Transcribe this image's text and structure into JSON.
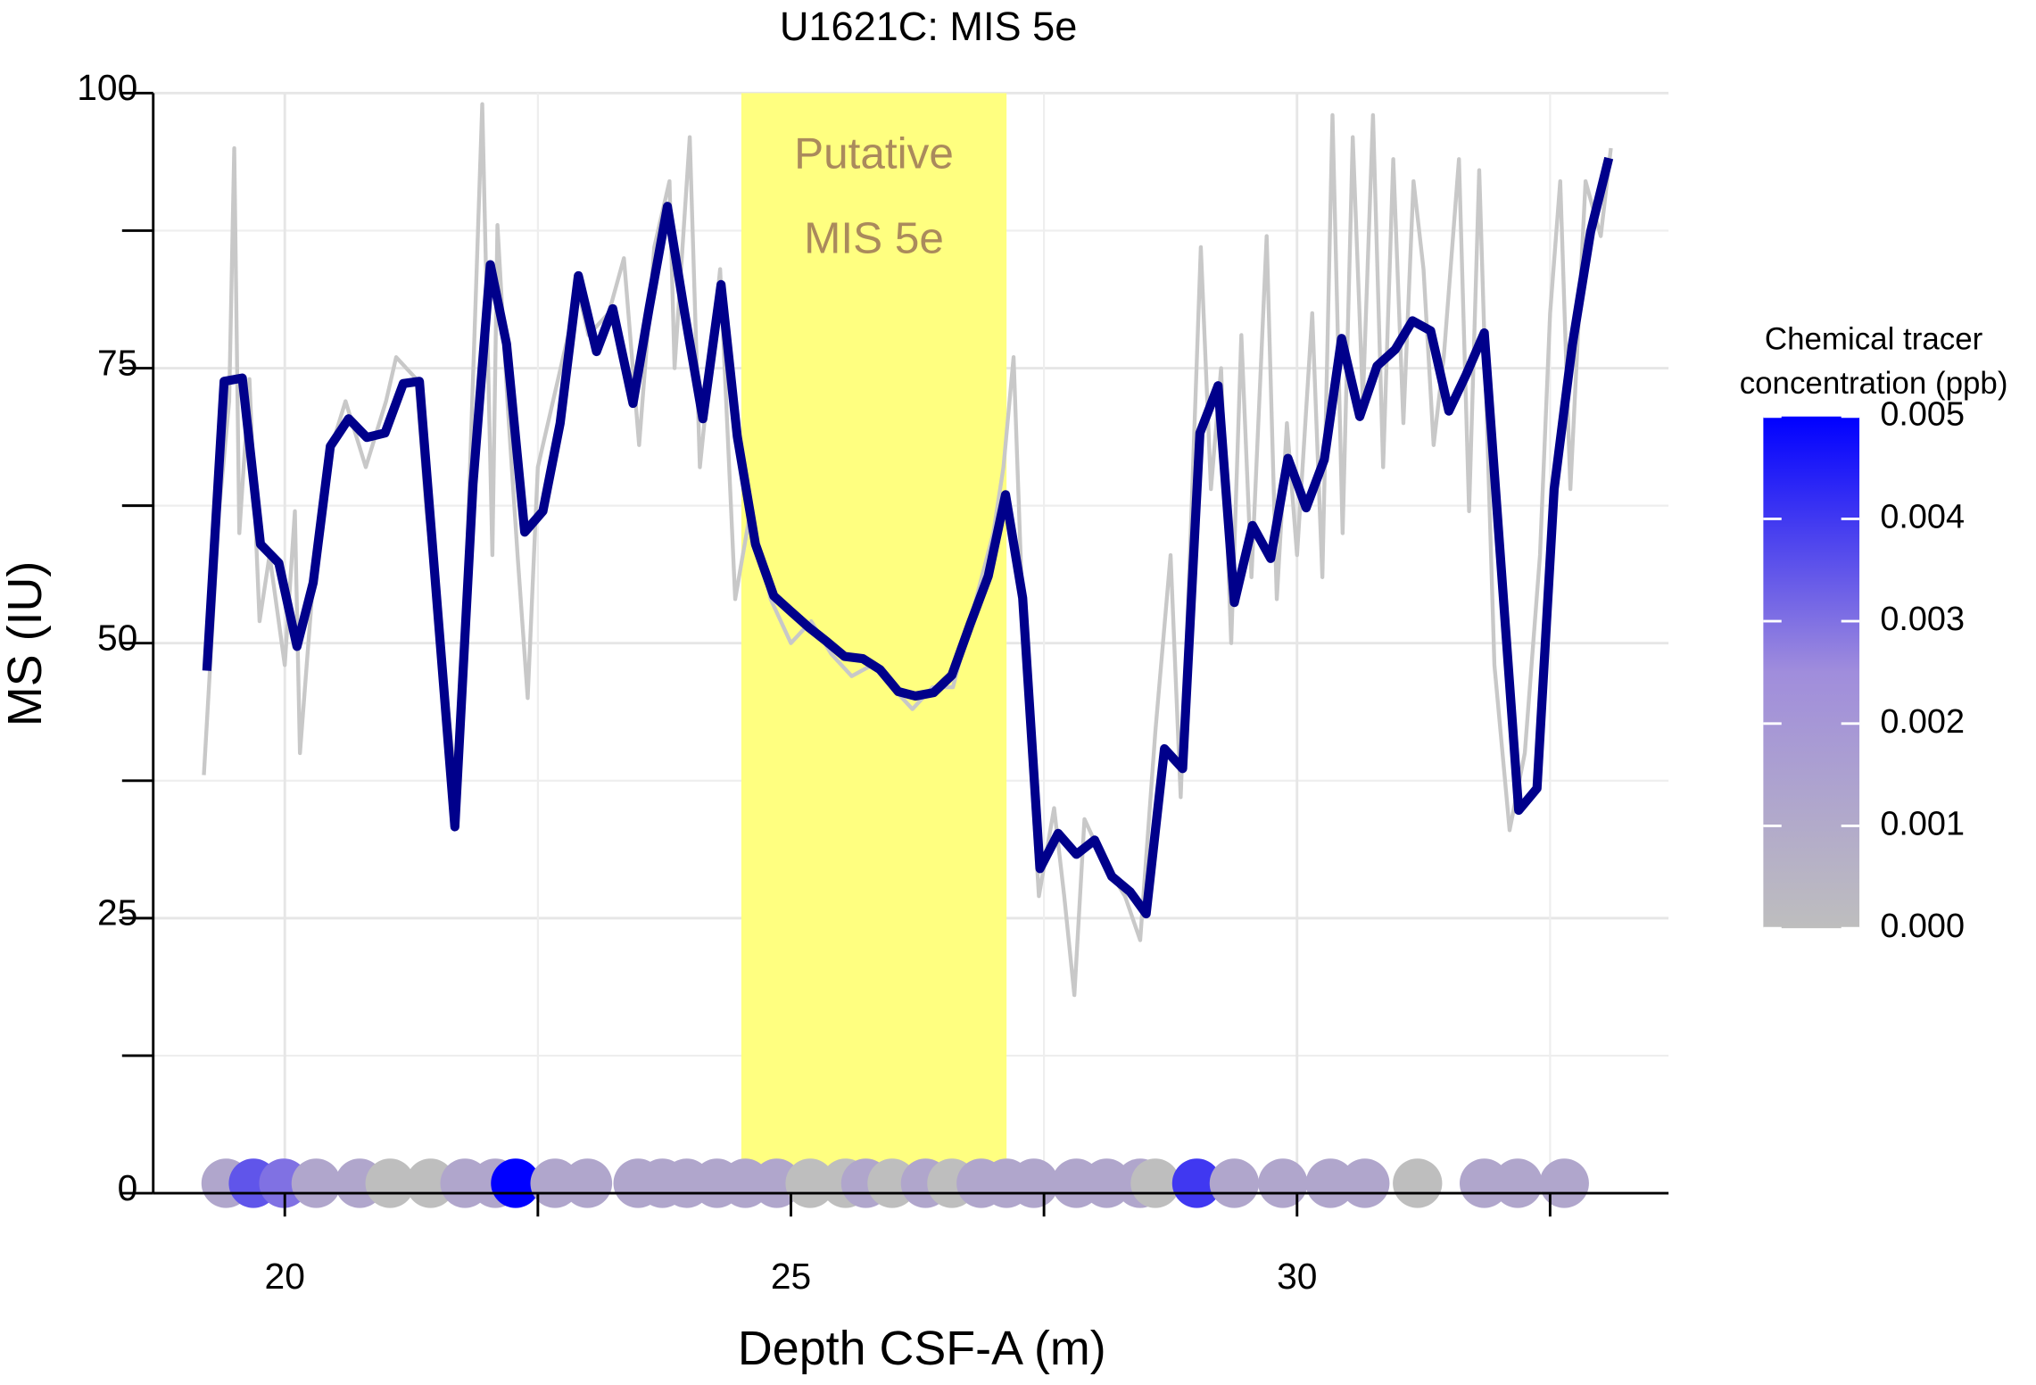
{
  "chart_data": {
    "type": "line",
    "title": "U1621C: MIS 5e",
    "x_label": "Depth CSF-A (m)",
    "y_label": "MS (IU)",
    "xlim": [
      18.7,
      33.67
    ],
    "ylim": [
      0,
      100
    ],
    "xticks": [
      20,
      25,
      30
    ],
    "xminorticks": [
      22.5,
      27.5,
      32.5
    ],
    "yticks": [
      0,
      25,
      50,
      75,
      100
    ],
    "yminorticks": [
      12.5,
      37.5,
      62.5,
      87.5
    ],
    "grid": true,
    "shaded_region": {
      "x": [
        24.51,
        27.13
      ],
      "color": "#ffff80"
    },
    "annotation": {
      "lines": [
        "Putative",
        "MIS 5e"
      ],
      "color": "#aa8a5c"
    },
    "series": [
      {
        "name": "raw",
        "color": "#c8c8c8",
        "x": [
          19.2,
          19.35,
          19.45,
          19.5,
          19.55,
          19.65,
          19.75,
          19.85,
          20.0,
          20.1,
          20.15,
          20.3,
          20.4,
          20.6,
          20.8,
          21.0,
          21.1,
          21.3,
          21.4,
          21.6,
          21.7,
          21.8,
          21.95,
          22.05,
          22.1,
          22.2,
          22.3,
          22.4,
          22.5,
          22.7,
          22.9,
          23.0,
          23.2,
          23.35,
          23.5,
          23.65,
          23.8,
          23.85,
          24.0,
          24.1,
          24.3,
          24.45,
          24.6,
          24.8,
          25.0,
          25.2,
          25.4,
          25.6,
          25.8,
          26.0,
          26.2,
          26.4,
          26.6,
          26.8,
          27.0,
          27.1,
          27.2,
          27.3,
          27.45,
          27.6,
          27.7,
          27.8,
          27.9,
          28.1,
          28.3,
          28.45,
          28.6,
          28.75,
          28.85,
          28.95,
          29.05,
          29.15,
          29.25,
          29.35,
          29.45,
          29.55,
          29.7,
          29.8,
          29.9,
          30.0,
          30.15,
          30.25,
          30.35,
          30.45,
          30.55,
          30.65,
          30.75,
          30.85,
          30.95,
          31.05,
          31.15,
          31.25,
          31.35,
          31.45,
          31.6,
          31.7,
          31.8,
          31.95,
          32.1,
          32.25,
          32.4,
          32.5,
          32.6,
          32.7,
          32.85,
          33.0,
          33.1
        ],
        "values": [
          38,
          62,
          72,
          95,
          60,
          74,
          52,
          58,
          48,
          62,
          40,
          58,
          66,
          72,
          66,
          72,
          76,
          74,
          62,
          45,
          36,
          58,
          99,
          58,
          88,
          72,
          58,
          45,
          66,
          74,
          82,
          78,
          80,
          85,
          68,
          86,
          92,
          75,
          96,
          66,
          84,
          54,
          62,
          54,
          50,
          52,
          49,
          47,
          48,
          46,
          44,
          46,
          46,
          53,
          60,
          66,
          76,
          50,
          27,
          35,
          27,
          18,
          34,
          30,
          27,
          23,
          42,
          58,
          36,
          60,
          86,
          64,
          75,
          50,
          78,
          56,
          87,
          54,
          70,
          58,
          80,
          56,
          98,
          60,
          96,
          72,
          98,
          66,
          94,
          70,
          92,
          84,
          68,
          76,
          94,
          62,
          93,
          48,
          33,
          40,
          58,
          80,
          92,
          64,
          92,
          87,
          95
        ]
      },
      {
        "name": "smoothed",
        "color": "#00008b",
        "x": [
          19.23,
          19.4,
          19.58,
          19.76,
          19.94,
          20.12,
          20.28,
          20.45,
          20.63,
          20.81,
          20.99,
          21.17,
          21.33,
          21.68,
          21.86,
          22.03,
          22.19,
          22.37,
          22.55,
          22.72,
          22.9,
          23.08,
          23.24,
          23.44,
          23.6,
          23.78,
          23.95,
          24.13,
          24.31,
          24.47,
          24.65,
          24.83,
          25.01,
          25.18,
          25.36,
          25.53,
          25.71,
          25.88,
          26.06,
          26.23,
          26.41,
          26.59,
          26.77,
          26.95,
          27.12,
          27.29,
          27.46,
          27.64,
          27.82,
          28.0,
          28.17,
          28.35,
          28.51,
          28.69,
          28.87,
          29.04,
          29.22,
          29.38,
          29.56,
          29.74,
          29.91,
          30.09,
          30.27,
          30.44,
          30.62,
          30.79,
          30.97,
          31.14,
          31.32,
          31.5,
          31.67,
          31.85,
          32.19,
          32.37,
          32.54,
          32.72,
          32.9,
          33.08
        ],
        "values": [
          47.5,
          73.8,
          74.1,
          59.0,
          57.3,
          49.7,
          55.5,
          67.9,
          70.4,
          68.7,
          69.1,
          73.6,
          73.8,
          33.3,
          64.5,
          84.4,
          77.2,
          60.1,
          62.0,
          70.0,
          83.4,
          76.5,
          80.4,
          71.8,
          80.5,
          89.7,
          80.0,
          70.4,
          82.6,
          68.8,
          59.0,
          54.3,
          52.8,
          51.4,
          50.1,
          48.8,
          48.6,
          47.6,
          45.6,
          45.2,
          45.5,
          47.1,
          51.7,
          56.1,
          63.5,
          54.1,
          29.5,
          32.7,
          30.8,
          32.1,
          28.8,
          27.4,
          25.4,
          40.4,
          38.6,
          69.1,
          73.4,
          53.7,
          60.7,
          57.7,
          66.8,
          62.3,
          66.7,
          77.7,
          70.6,
          75.2,
          76.7,
          79.3,
          78.4,
          71.1,
          74.4,
          78.2,
          34.8,
          36.8,
          64.0,
          77.1,
          87.4,
          94.1
        ]
      }
    ],
    "points": {
      "x": [
        19.42,
        19.69,
        19.99,
        20.31,
        20.74,
        21.04,
        21.44,
        21.78,
        22.08,
        22.28,
        22.67,
        22.99,
        23.49,
        23.73,
        23.97,
        24.27,
        24.55,
        24.86,
        25.19,
        25.54,
        25.74,
        26.0,
        26.33,
        26.59,
        26.88,
        27.13,
        27.4,
        27.82,
        28.12,
        28.45,
        28.6,
        29.01,
        29.38,
        29.86,
        30.33,
        30.67,
        31.19,
        31.85,
        32.18,
        32.64
      ],
      "values": [
        0.9,
        0.9,
        0.9,
        0.9,
        0.9,
        0.9,
        0.9,
        0.9,
        0.9,
        0.9,
        0.9,
        0.9,
        0.9,
        0.9,
        0.9,
        0.9,
        0.9,
        0.9,
        0.9,
        0.9,
        0.9,
        0.9,
        0.9,
        0.9,
        0.9,
        0.9,
        0.9,
        0.9,
        0.9,
        0.9,
        0.9,
        0.9,
        0.9,
        0.9,
        0.9,
        0.9,
        0.9,
        0.9,
        0.9,
        0.9
      ],
      "concentration": [
        0.0012,
        0.0035,
        0.003,
        0.0012,
        0.0012,
        0,
        0,
        0.0012,
        0.0012,
        0.005,
        0.0012,
        0.0012,
        0.0012,
        0.0012,
        0.0012,
        0.0012,
        0.0012,
        0.0012,
        0,
        0,
        0.0012,
        0,
        0.0012,
        0,
        0.0012,
        0.0012,
        0.0012,
        0.0012,
        0.0012,
        0.0012,
        0,
        0.004,
        0.0012,
        0.0012,
        0.0012,
        0.0012,
        0,
        0.0012,
        0.0012,
        0.0012
      ]
    },
    "colorbar": {
      "title": [
        "Chemical tracer",
        "concentration (ppb)"
      ],
      "lim": [
        0,
        0.005
      ],
      "colors": [
        "#bebebe",
        "#a08ddc",
        "#0000ff"
      ],
      "ticks": [
        {
          "value": 0,
          "label": "0.000"
        },
        {
          "value": 0.001,
          "label": "0.001"
        },
        {
          "value": 0.002,
          "label": "0.002"
        },
        {
          "value": 0.003,
          "label": "0.003"
        },
        {
          "value": 0.004,
          "label": "0.004"
        },
        {
          "value": 0.005,
          "label": "0.005"
        }
      ]
    }
  }
}
